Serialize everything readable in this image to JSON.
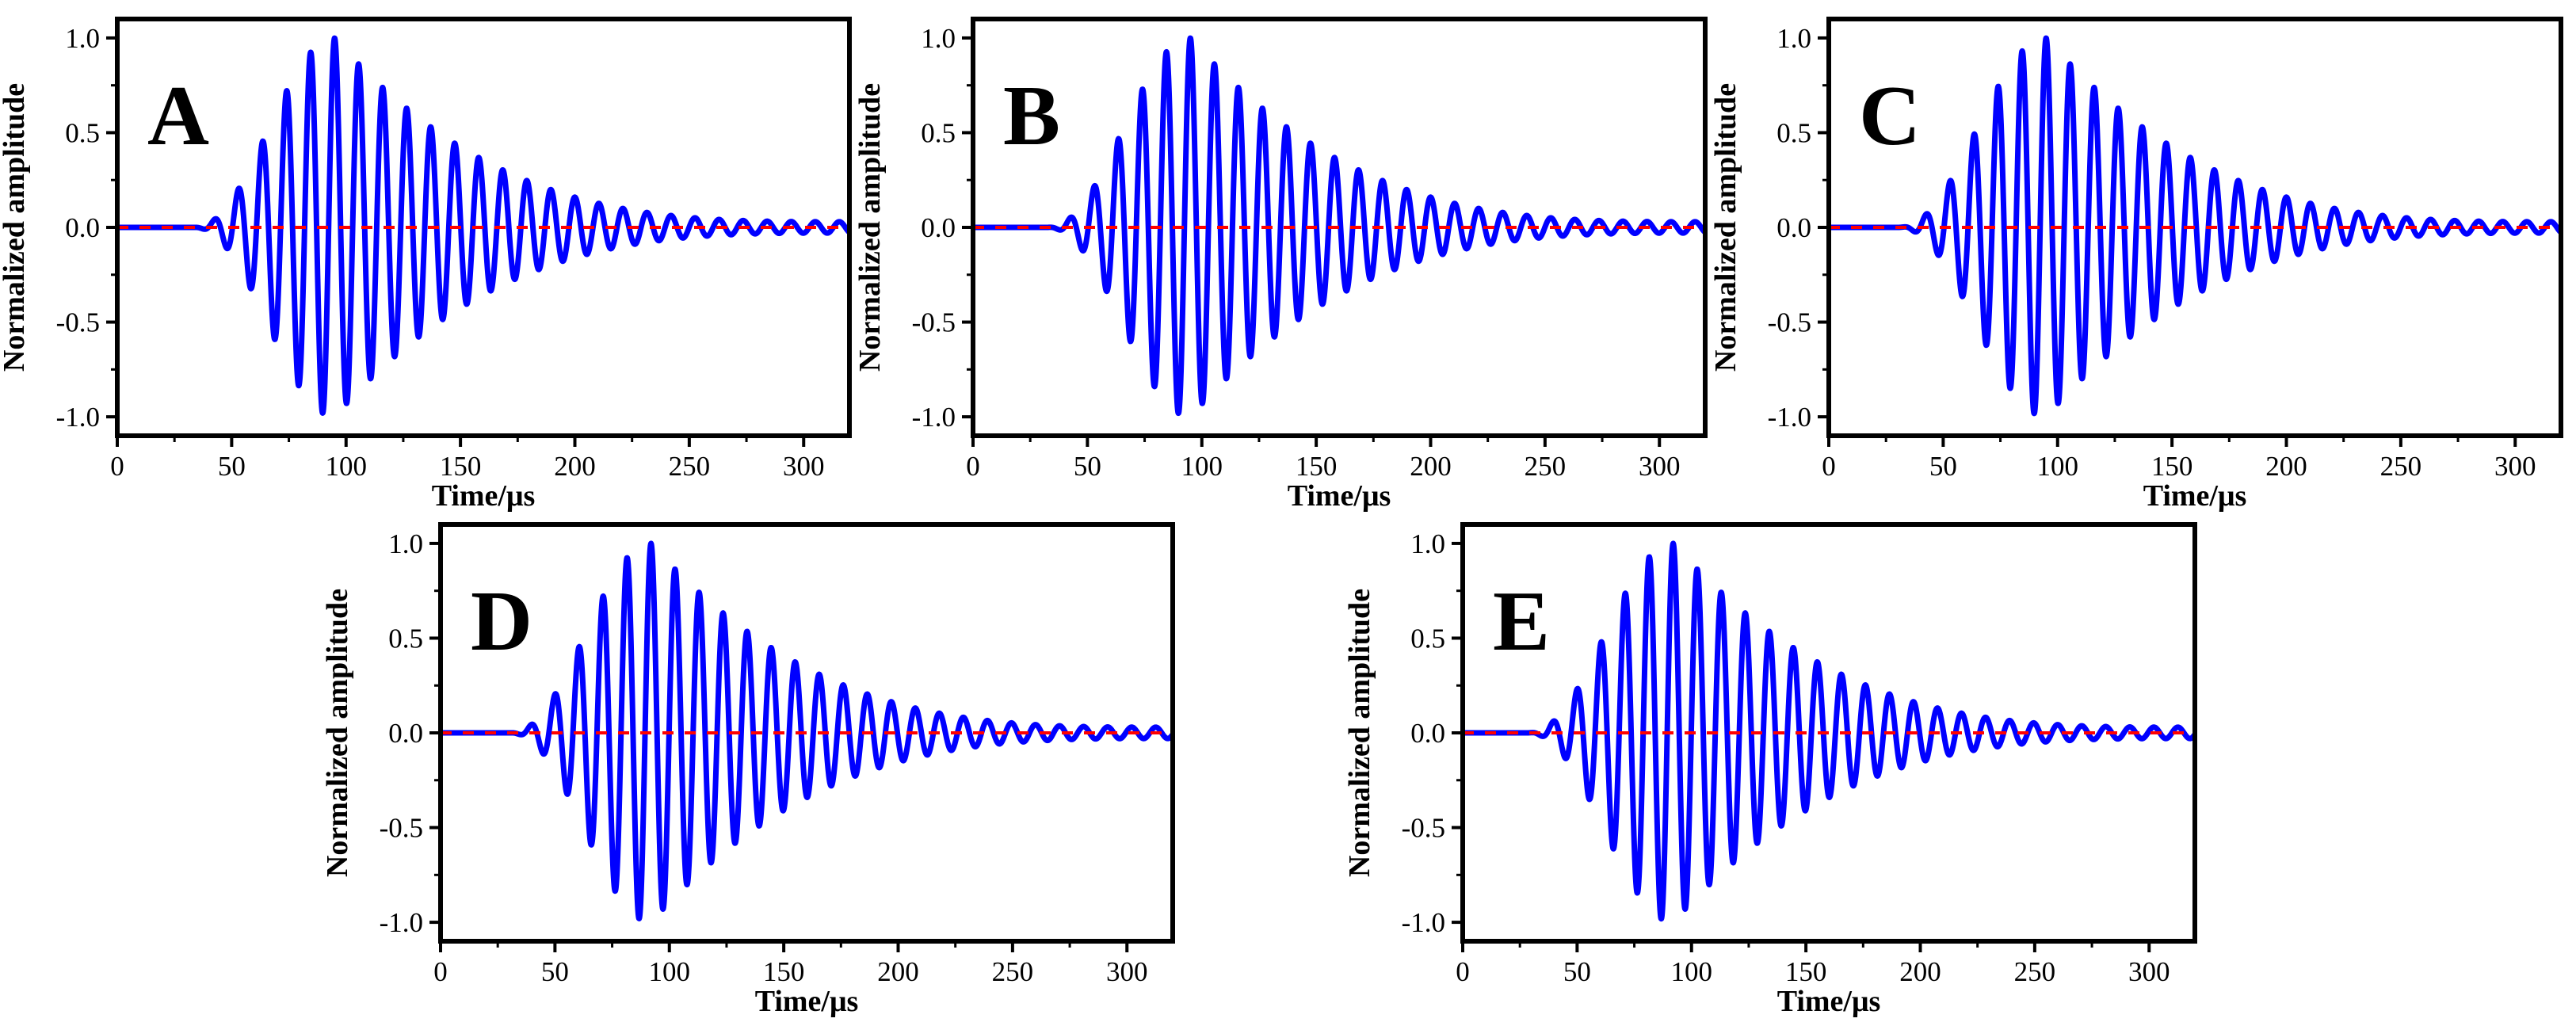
{
  "chart_data": [
    {
      "type": "line",
      "panel": "A",
      "xlabel": "Time/μs",
      "ylabel": "Normalized amplitude",
      "xlim": [
        0,
        320
      ],
      "ylim": [
        -1.1,
        1.1
      ],
      "xticks": [
        0,
        50,
        100,
        150,
        200,
        250,
        300
      ],
      "yticks": [
        -1.0,
        -0.5,
        0.0,
        0.5,
        1.0
      ],
      "series": [
        {
          "name": "signal",
          "color": "#0000ff",
          "kind": "tone-burst",
          "start_us": 33,
          "peak_us": 95,
          "end_us": 320,
          "freq_mhz": 0.0952,
          "tail_amplitude": 0.03,
          "peak_amplitude": 1.0
        },
        {
          "name": "zero baseline",
          "color": "#ff0000",
          "kind": "dashed-zero"
        }
      ]
    },
    {
      "type": "line",
      "panel": "B",
      "xlabel": "Time/μs",
      "ylabel": "Normalized amplitude",
      "xlim": [
        0,
        320
      ],
      "ylim": [
        -1.1,
        1.1
      ],
      "xticks": [
        0,
        50,
        100,
        150,
        200,
        250,
        300
      ],
      "yticks": [
        -1.0,
        -0.5,
        0.0,
        0.5,
        1.0
      ],
      "series": [
        {
          "name": "signal",
          "color": "#0000ff",
          "kind": "tone-burst",
          "start_us": 32,
          "peak_us": 95,
          "end_us": 320,
          "freq_mhz": 0.0952,
          "tail_amplitude": 0.03,
          "peak_amplitude": 1.0
        },
        {
          "name": "zero baseline",
          "color": "#ff0000",
          "kind": "dashed-zero"
        }
      ]
    },
    {
      "type": "line",
      "panel": "C",
      "xlabel": "Time/μs",
      "ylabel": "Normalized amplitude",
      "xlim": [
        0,
        320
      ],
      "ylim": [
        -1.1,
        1.1
      ],
      "xticks": [
        0,
        50,
        100,
        150,
        200,
        250,
        300
      ],
      "yticks": [
        -1.0,
        -0.5,
        0.0,
        0.5,
        1.0
      ],
      "series": [
        {
          "name": "signal",
          "color": "#0000ff",
          "kind": "tone-burst",
          "start_us": 30,
          "peak_us": 95,
          "end_us": 320,
          "freq_mhz": 0.0952,
          "tail_amplitude": 0.03,
          "peak_amplitude": 1.0
        },
        {
          "name": "zero baseline",
          "color": "#ff0000",
          "kind": "dashed-zero"
        }
      ]
    },
    {
      "type": "line",
      "panel": "D",
      "xlabel": "Time/μs",
      "ylabel": "Normalized amplitude",
      "xlim": [
        0,
        320
      ],
      "ylim": [
        -1.1,
        1.1
      ],
      "xticks": [
        0,
        50,
        100,
        150,
        200,
        250,
        300
      ],
      "yticks": [
        -1.0,
        -0.5,
        0.0,
        0.5,
        1.0
      ],
      "series": [
        {
          "name": "signal",
          "color": "#0000ff",
          "kind": "tone-burst",
          "start_us": 30,
          "peak_us": 92,
          "end_us": 320,
          "freq_mhz": 0.0952,
          "tail_amplitude": 0.03,
          "peak_amplitude": 1.0
        },
        {
          "name": "zero baseline",
          "color": "#ff0000",
          "kind": "dashed-zero"
        }
      ]
    },
    {
      "type": "line",
      "panel": "E",
      "xlabel": "Time/μs",
      "ylabel": "Normalized amplitude",
      "xlim": [
        0,
        320
      ],
      "ylim": [
        -1.1,
        1.1
      ],
      "xticks": [
        0,
        50,
        100,
        150,
        200,
        250,
        300
      ],
      "yticks": [
        -1.0,
        -0.5,
        0.0,
        0.5,
        1.0
      ],
      "series": [
        {
          "name": "signal",
          "color": "#0000ff",
          "kind": "tone-burst",
          "start_us": 28,
          "peak_us": 92,
          "end_us": 320,
          "freq_mhz": 0.0952,
          "tail_amplitude": 0.03,
          "peak_amplitude": 1.0
        },
        {
          "name": "zero baseline",
          "color": "#ff0000",
          "kind": "dashed-zero"
        }
      ]
    }
  ]
}
